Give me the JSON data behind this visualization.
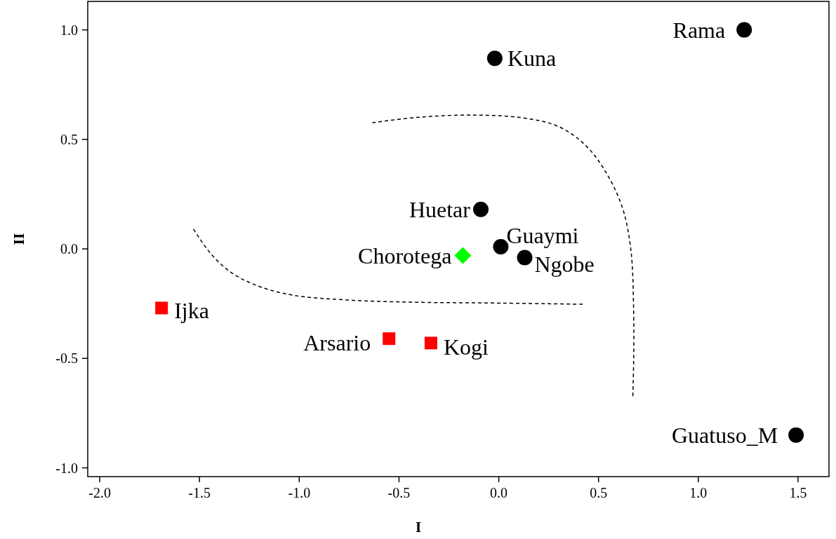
{
  "chart_data": {
    "type": "scatter",
    "xlabel": "I",
    "ylabel": "II",
    "xlim": [
      -2.06,
      1.655
    ],
    "ylim": [
      -1.04,
      1.13
    ],
    "xticks": [
      {
        "value": -2,
        "label": "-2.0"
      },
      {
        "value": -1.5,
        "label": "-1.5"
      },
      {
        "value": -1,
        "label": "-1.0"
      },
      {
        "value": -0.5,
        "label": "-0.5"
      },
      {
        "value": 0,
        "label": "0.0"
      },
      {
        "value": 0.5,
        "label": "0.5"
      },
      {
        "value": 1,
        "label": "1.0"
      },
      {
        "value": 1.5,
        "label": "1.5"
      }
    ],
    "yticks": [
      {
        "value": -1,
        "label": "-1.0"
      },
      {
        "value": -0.5,
        "label": "-0.5"
      },
      {
        "value": 0,
        "label": "0.0"
      },
      {
        "value": 0.5,
        "label": "0.5"
      },
      {
        "value": 1,
        "label": "1.0"
      }
    ],
    "grid": false,
    "series": [
      {
        "color": "#000000",
        "marker": "circle",
        "x": [
          1.23,
          -0.02,
          -0.09,
          0.01,
          0.13,
          1.49
        ],
        "values": [
          1.0,
          0.87,
          0.18,
          0.01,
          -0.04,
          -0.85
        ]
      },
      {
        "color": "#ff0000",
        "marker": "square",
        "x": [
          -1.69,
          -0.55,
          -0.34
        ],
        "values": [
          -0.27,
          -0.41,
          -0.43
        ]
      },
      {
        "color": "#00ff00",
        "marker": "diamond",
        "x": [
          -0.18
        ],
        "values": [
          -0.03
        ]
      },
      {
        "type": "line",
        "color": "#000000",
        "marker": "none",
        "line_style": "dashed",
        "x": [
          -1.53,
          -1.446,
          -1.341,
          -1.202,
          -1.028,
          -0.749,
          -0.401,
          -0.052,
          0.425
        ],
        "values": [
          0.09,
          -0.019,
          -0.108,
          -0.171,
          -0.212,
          -0.234,
          -0.244,
          -0.247,
          -0.253
        ]
      },
      {
        "type": "line",
        "color": "#000000",
        "marker": "none",
        "line_style": "dashed",
        "x": [
          -0.634,
          -0.401,
          -0.122,
          0.122,
          0.296,
          0.436,
          0.54,
          0.62,
          0.662,
          0.676,
          0.676,
          0.672
        ],
        "values": [
          0.576,
          0.601,
          0.611,
          0.598,
          0.56,
          0.472,
          0.345,
          0.187,
          -0.003,
          -0.288,
          -0.509,
          -0.674
        ]
      }
    ],
    "annotations": [
      {
        "text": "Rama",
        "x": 1.23,
        "y": 1.0
      },
      {
        "text": "Kuna",
        "x": -0.02,
        "y": 0.87
      },
      {
        "text": "Huetar",
        "x": -0.09,
        "y": 0.18
      },
      {
        "text": "Guaymi",
        "x": 0.01,
        "y": 0.01
      },
      {
        "text": "Ngobe",
        "x": 0.13,
        "y": -0.04
      },
      {
        "text": "Guatuso_M",
        "x": 1.49,
        "y": -0.85
      },
      {
        "text": "Ijka",
        "x": -1.69,
        "y": -0.27
      },
      {
        "text": "Arsario",
        "x": -0.55,
        "y": -0.41
      },
      {
        "text": "Kogi",
        "x": -0.34,
        "y": -0.43
      },
      {
        "text": "Chorotega",
        "x": -0.18,
        "y": -0.03
      }
    ]
  }
}
